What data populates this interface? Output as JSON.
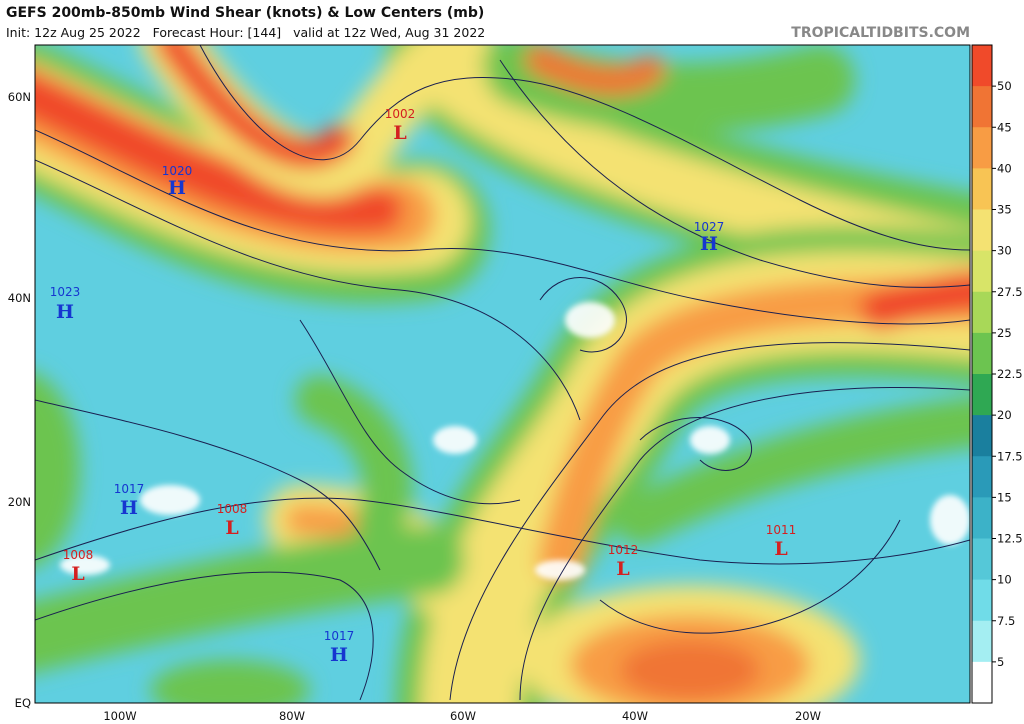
{
  "header": {
    "title": "GEFS 200mb-850mb Wind Shear (knots) & Low Centers (mb)",
    "subtitle": "Init: 12z Aug 25 2022   Forecast Hour: [144]   valid at 12z Wed, Aug 31 2022",
    "source": "TROPICALTIDBITS.COM"
  },
  "latitude_labels": [
    "60N",
    "40N",
    "20N",
    "EQ"
  ],
  "longitude_labels": [
    "100W",
    "80W",
    "60W",
    "40W",
    "20W"
  ],
  "colorbar": {
    "ticks": [
      50,
      45,
      40,
      35,
      30,
      27.5,
      25,
      22.5,
      20,
      17.5,
      15,
      12.5,
      10,
      7.5,
      5
    ],
    "colors": [
      "#f04a2a",
      "#f07434",
      "#f89c44",
      "#f8c454",
      "#f4e272",
      "#d8e468",
      "#a8d858",
      "#6cc450",
      "#2fa853",
      "#1a7f9e",
      "#2a9ab8",
      "#3cb2c8",
      "#55c8d8",
      "#70dce8",
      "#a4eef2",
      "#ffffff"
    ]
  },
  "pressure_centers": [
    {
      "value": "1002",
      "letter": "L"
    },
    {
      "value": "1020",
      "letter": "H"
    },
    {
      "value": "1027",
      "letter": "H"
    },
    {
      "value": "1023",
      "letter": "H"
    },
    {
      "value": "1017",
      "letter": "H"
    },
    {
      "value": "1008",
      "letter": "L"
    },
    {
      "value": "1008",
      "letter": "L"
    },
    {
      "value": "1012",
      "letter": "L"
    },
    {
      "value": "1011",
      "letter": "L"
    },
    {
      "value": "1017",
      "letter": "H"
    }
  ]
}
